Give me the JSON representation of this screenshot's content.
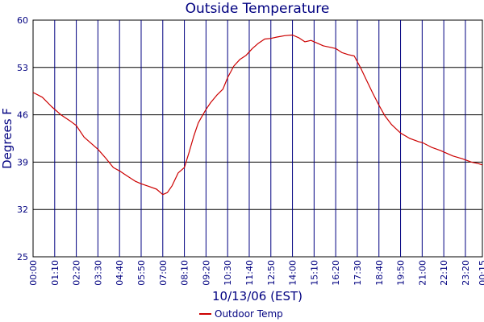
{
  "chart_data": {
    "type": "line",
    "title": "Outside Temperature",
    "xlabel": "10/13/06 (EST)",
    "ylabel": "Degrees F",
    "ylim": [
      25,
      60
    ],
    "yticks": [
      "25",
      "32",
      "39",
      "46",
      "53",
      "60"
    ],
    "xlim": [
      "00:00",
      "00:15 (next day)"
    ],
    "xticks": [
      "00:00",
      "01:10",
      "02:20",
      "03:30",
      "04:40",
      "05:50",
      "07:00",
      "08:10",
      "09:20",
      "10:30",
      "11:40",
      "12:50",
      "14:00",
      "15:10",
      "16:20",
      "17:30",
      "18:40",
      "19:50",
      "21:00",
      "22:10",
      "23:20",
      "00:15"
    ],
    "grid": true,
    "legend": "bottom-center",
    "series": [
      {
        "name": "Outdoor Temp",
        "color": "#cc0000",
        "x": [
          "00:00",
          "00:30",
          "01:00",
          "01:30",
          "02:00",
          "02:20",
          "02:45",
          "03:10",
          "03:30",
          "03:55",
          "04:20",
          "04:40",
          "05:00",
          "05:30",
          "05:50",
          "06:15",
          "06:40",
          "07:00",
          "07:15",
          "07:30",
          "07:50",
          "08:10",
          "08:25",
          "08:40",
          "08:55",
          "09:10",
          "09:20",
          "09:35",
          "09:55",
          "10:15",
          "10:30",
          "10:50",
          "11:10",
          "11:30",
          "11:50",
          "12:10",
          "12:30",
          "12:50",
          "13:10",
          "13:35",
          "14:00",
          "14:20",
          "14:40",
          "15:00",
          "15:20",
          "15:40",
          "16:00",
          "16:20",
          "16:40",
          "17:00",
          "17:20",
          "17:40",
          "18:00",
          "18:20",
          "18:40",
          "19:00",
          "19:20",
          "19:50",
          "20:20",
          "20:50",
          "21:00",
          "21:30",
          "22:00",
          "22:10",
          "22:40",
          "23:10",
          "23:40",
          "24:00",
          "24:15"
        ],
        "values": [
          49.3,
          48.6,
          47.2,
          46.0,
          45.1,
          44.4,
          42.7,
          41.7,
          40.9,
          39.6,
          38.2,
          37.7,
          37.1,
          36.2,
          35.8,
          35.4,
          35.0,
          34.2,
          34.5,
          35.5,
          37.4,
          38.2,
          40.4,
          42.8,
          44.8,
          46.0,
          46.8,
          47.8,
          48.9,
          49.8,
          51.5,
          53.2,
          54.2,
          54.8,
          55.8,
          56.6,
          57.2,
          57.3,
          57.5,
          57.7,
          57.8,
          57.4,
          56.8,
          57.0,
          56.6,
          56.2,
          56.0,
          55.8,
          55.2,
          54.9,
          54.7,
          53.0,
          51.1,
          49.2,
          47.4,
          45.8,
          44.6,
          43.3,
          42.5,
          42.0,
          41.9,
          41.2,
          40.7,
          40.5,
          39.9,
          39.5,
          39.0,
          38.8,
          38.6
        ]
      }
    ]
  }
}
